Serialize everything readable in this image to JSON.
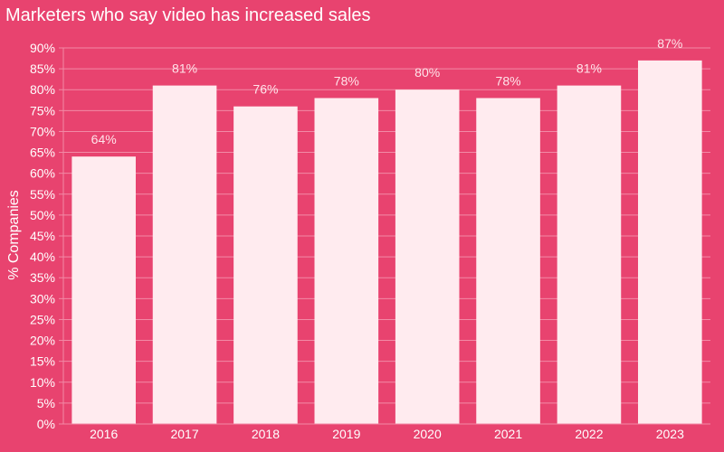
{
  "colors": {
    "background": "#e8436f",
    "bar": "#ffebef",
    "grid": "#f28aa6",
    "text": "#ffffff",
    "label": "#ffe4ea"
  },
  "chart_data": {
    "type": "bar",
    "title": "Marketers who say video has increased sales",
    "xlabel": "",
    "ylabel": "% Companies",
    "categories": [
      "2016",
      "2017",
      "2018",
      "2019",
      "2020",
      "2021",
      "2022",
      "2023"
    ],
    "values": [
      64,
      81,
      76,
      78,
      80,
      78,
      81,
      87
    ],
    "value_labels": [
      "64%",
      "81%",
      "76%",
      "78%",
      "80%",
      "78%",
      "81%",
      "87%"
    ],
    "ylim": [
      0,
      90
    ],
    "yticks": [
      0,
      5,
      10,
      15,
      20,
      25,
      30,
      35,
      40,
      45,
      50,
      55,
      60,
      65,
      70,
      75,
      80,
      85,
      90
    ],
    "ytick_labels": [
      "0%",
      "5%",
      "10%",
      "15%",
      "20%",
      "25%",
      "30%",
      "35%",
      "40%",
      "45%",
      "50%",
      "55%",
      "60%",
      "65%",
      "70%",
      "75%",
      "80%",
      "85%",
      "90%"
    ],
    "grid": true,
    "legend": false
  }
}
